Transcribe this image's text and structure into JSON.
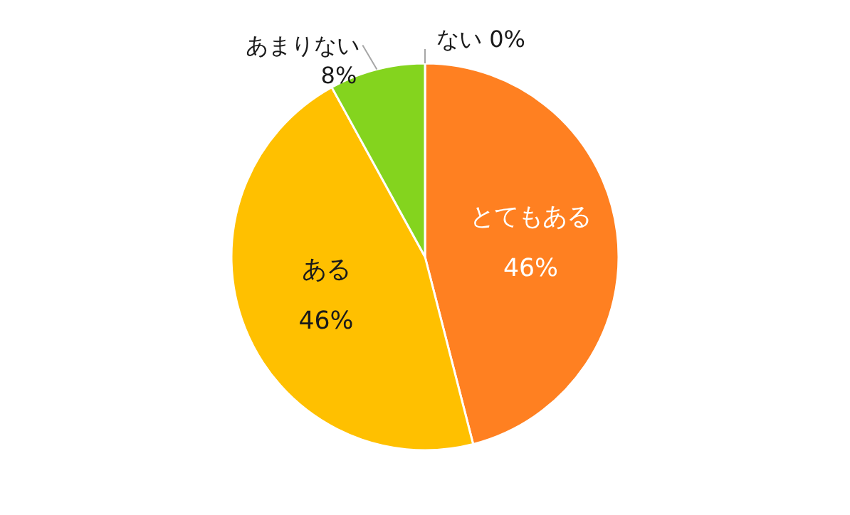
{
  "chart_data": {
    "type": "pie",
    "categories": [
      "とてもある",
      "ある",
      "あまりない",
      "ない"
    ],
    "values": [
      46,
      46,
      8,
      0
    ],
    "colors": [
      "#ff8021",
      "#ffc000",
      "#84d41e",
      "#00b050"
    ],
    "value_labels": [
      "46%",
      "46%",
      "8%",
      "0%"
    ]
  }
}
